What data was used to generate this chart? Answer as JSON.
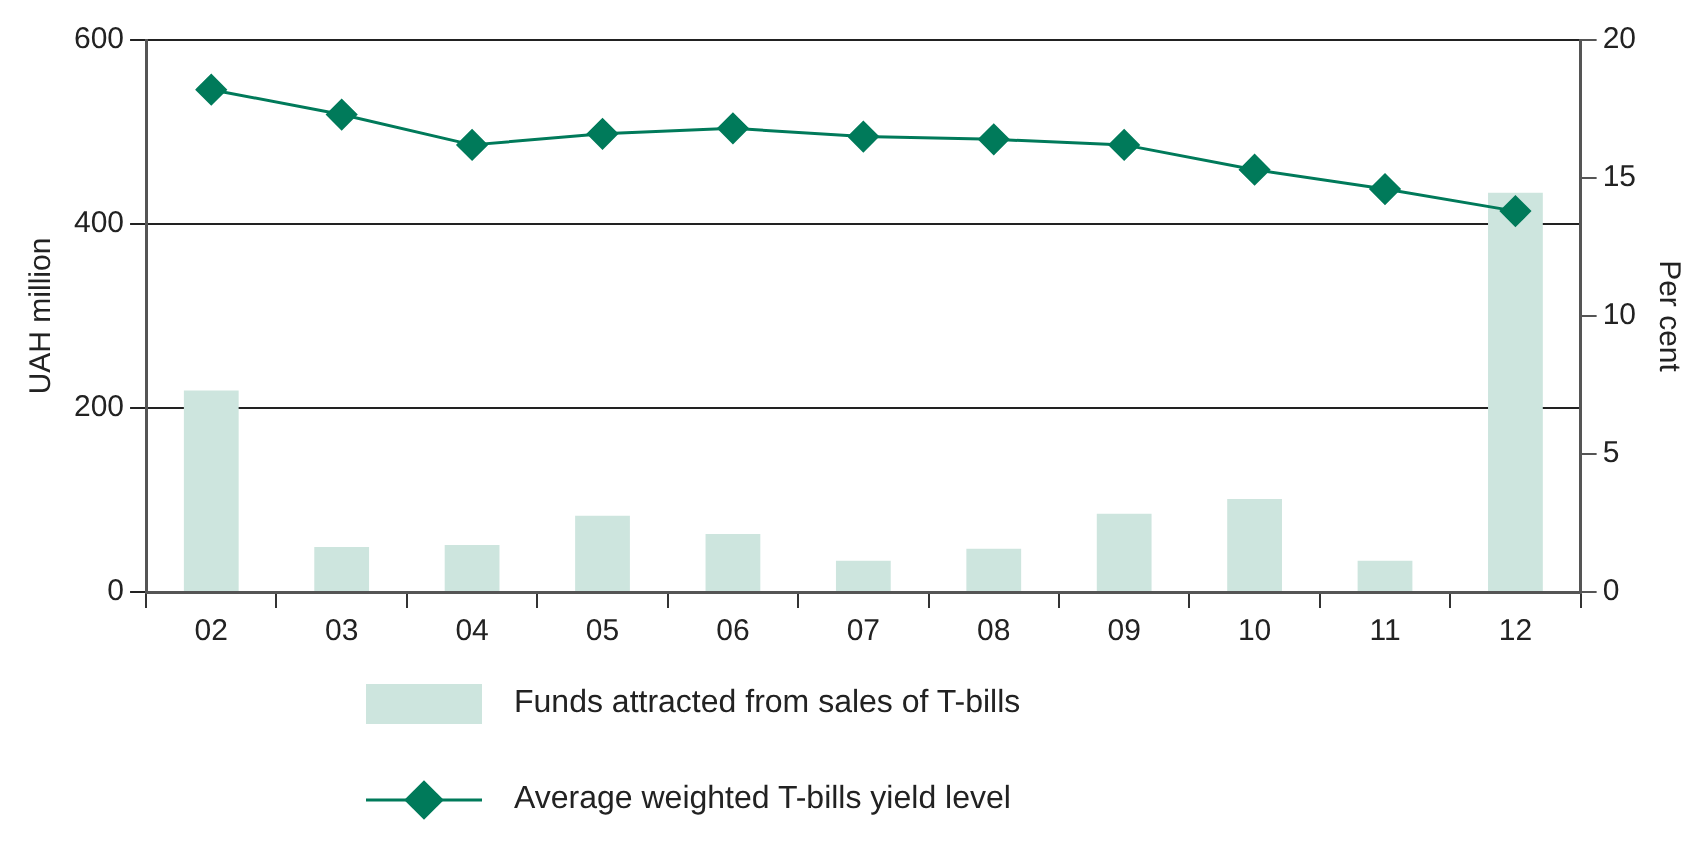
{
  "chart_data": {
    "type": "bar",
    "categories": [
      "02",
      "03",
      "04",
      "05",
      "06",
      "07",
      "08",
      "09",
      "10",
      "11",
      "12"
    ],
    "series": [
      {
        "name": "Funds attracted from sales of T-bills",
        "color": "#cde5de",
        "values": [
          219,
          49,
          51,
          83,
          63,
          34,
          47,
          85,
          101,
          34,
          434
        ]
      },
      {
        "name": "Average weighted T-bills yield level",
        "type": "line",
        "axis": "y2",
        "color": "#007a5a",
        "values": [
          18.2,
          17.3,
          16.2,
          16.6,
          16.8,
          16.5,
          16.4,
          16.2,
          15.3,
          14.6,
          13.8
        ]
      }
    ],
    "ylabel": "UAH million",
    "y2label": "Per cent",
    "ylim": [
      0,
      600
    ],
    "yticks": [
      0,
      200,
      400,
      600
    ],
    "y2lim": [
      0,
      20
    ],
    "y2ticks": [
      0,
      5,
      10,
      15,
      20
    ],
    "grid": "y",
    "legend": "bottom",
    "marker": "diamond"
  }
}
